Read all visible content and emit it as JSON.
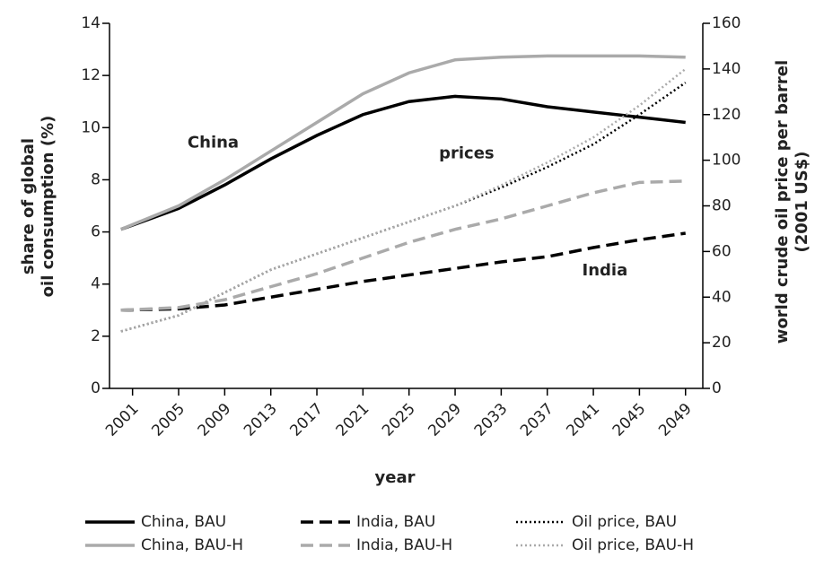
{
  "chart_data": {
    "type": "line",
    "xlabel": "year",
    "ylabel": [
      "share of global",
      "oil consumption (%)"
    ],
    "y2label": [
      "world crude oil price per barrel",
      "(2001 US$)"
    ],
    "x": [
      2000,
      2005,
      2009,
      2013,
      2017,
      2021,
      2025,
      2029,
      2033,
      2037,
      2041,
      2045,
      2049
    ],
    "xlim": [
      1999,
      2050.5
    ],
    "xticks": [
      2001,
      2005,
      2009,
      2013,
      2017,
      2021,
      2025,
      2029,
      2033,
      2037,
      2041,
      2045,
      2049
    ],
    "ylim": [
      0,
      14
    ],
    "yticks": [
      0,
      2,
      4,
      6,
      8,
      10,
      12,
      14
    ],
    "y2lim": [
      0,
      160
    ],
    "y2ticks": [
      0,
      20,
      40,
      60,
      80,
      100,
      120,
      140,
      160
    ],
    "series": [
      {
        "name": "China, BAU",
        "color": "#000000",
        "dash": "solid",
        "values": [
          6.1,
          6.9,
          7.8,
          8.8,
          9.7,
          10.5,
          11.0,
          11.2,
          11.1,
          10.8,
          10.6,
          10.4,
          10.2
        ]
      },
      {
        "name": "India, BAU",
        "color": "#000000",
        "dash": "dashed",
        "values": [
          3.0,
          3.05,
          3.2,
          3.5,
          3.8,
          4.1,
          4.35,
          4.6,
          4.85,
          5.05,
          5.4,
          5.7,
          5.95
        ]
      },
      {
        "name": "Oil price, BAU",
        "color": "#000000",
        "dash": "dotted",
        "axis": "y2",
        "values": [
          25,
          32,
          42,
          52,
          59,
          66,
          73,
          80,
          88,
          97,
          107,
          120,
          134
        ]
      },
      {
        "name": "China, BAU-H",
        "color": "#aaaaaa",
        "dash": "solid",
        "values": [
          6.1,
          7.0,
          8.0,
          9.1,
          10.2,
          11.3,
          12.1,
          12.6,
          12.7,
          12.75,
          12.75,
          12.75,
          12.7
        ]
      },
      {
        "name": "India, BAU-H",
        "color": "#aaaaaa",
        "dash": "dashed",
        "values": [
          3.0,
          3.1,
          3.4,
          3.9,
          4.4,
          5.0,
          5.6,
          6.1,
          6.5,
          7.0,
          7.5,
          7.9,
          7.95
        ]
      },
      {
        "name": "Oil price, BAU-H",
        "color": "#aaaaaa",
        "dash": "dotted",
        "axis": "y2",
        "values": [
          25,
          32,
          42,
          52,
          59,
          66,
          73,
          80,
          89,
          99,
          110,
          124,
          140
        ]
      }
    ],
    "annotations": [
      {
        "text": "China",
        "x": 2008,
        "y": 9.4
      },
      {
        "text": "prices",
        "x": 2030,
        "y": 9.0
      },
      {
        "text": "India",
        "x": 2042,
        "y": 4.5
      }
    ]
  }
}
